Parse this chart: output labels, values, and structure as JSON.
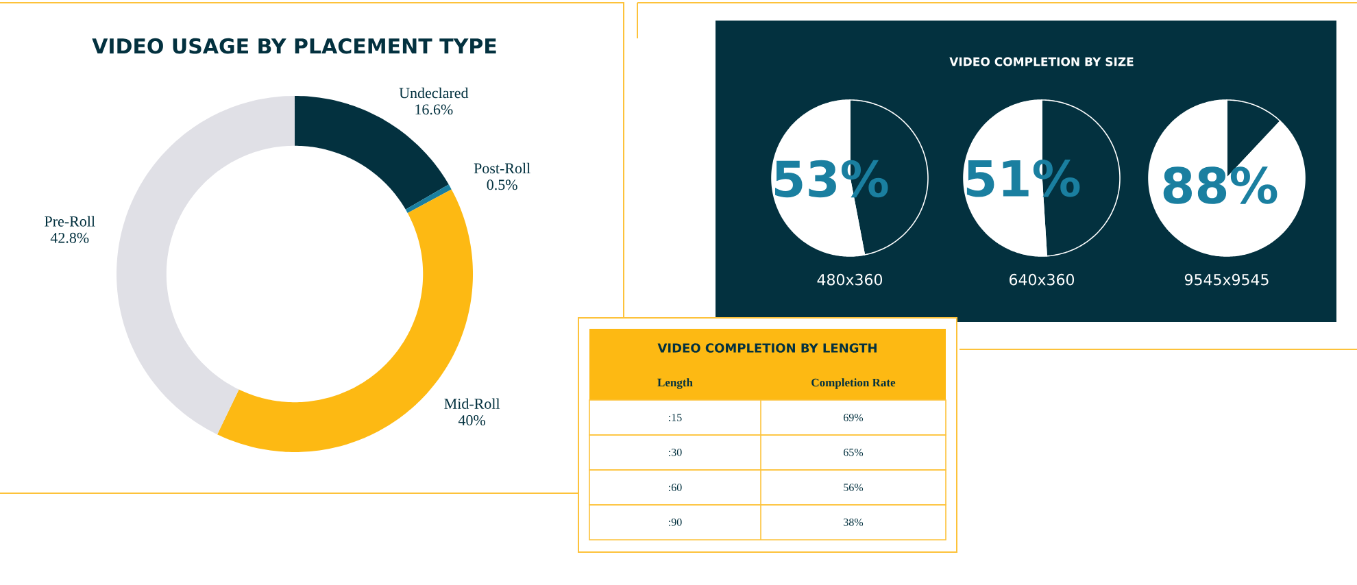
{
  "chart_data": [
    {
      "type": "donut",
      "title": "VIDEO USAGE BY PLACEMENT TYPE",
      "categories": [
        "Undeclared",
        "Post-Roll",
        "Mid-Roll",
        "Pre-Roll"
      ],
      "values": [
        16.6,
        0.5,
        40,
        42.8
      ],
      "value_labels": [
        "16.6%",
        "0.5%",
        "40%",
        "42.8%"
      ],
      "colors": [
        "#03313f",
        "#1a7fa0",
        "#fdb913",
        "#e0e0e6"
      ]
    },
    {
      "type": "other",
      "title": "VIDEO COMPLETION BY SIZE"
    },
    {
      "type": "pie",
      "xlabel": "480x360",
      "categories": [
        null,
        null
      ],
      "values": [
        47,
        53
      ],
      "value_labels": [
        null,
        "53%"
      ],
      "colors": [
        "#03313f",
        "#ffffff"
      ]
    },
    {
      "type": "pie",
      "xlabel": "640x360",
      "categories": [
        null,
        null
      ],
      "values": [
        49,
        51
      ],
      "value_labels": [
        null,
        "51%"
      ],
      "colors": [
        "#03313f",
        "#ffffff"
      ]
    },
    {
      "type": "pie",
      "xlabel": "9545x9545",
      "categories": [
        null,
        null
      ],
      "values": [
        12,
        88
      ],
      "value_labels": [
        null,
        "88%"
      ],
      "colors": [
        "#03313f",
        "#ffffff"
      ]
    },
    {
      "type": "other",
      "title": "VIDEO COMPLETION BY LENGTH",
      "xlabel": "Length",
      "ylabel": "Completion Rate",
      "categories": [
        ":15",
        ":30",
        ":60",
        ":90"
      ],
      "values": [
        69,
        65,
        56,
        38
      ],
      "value_labels": [
        "69%",
        "65%",
        "56%",
        "38%"
      ]
    }
  ]
}
